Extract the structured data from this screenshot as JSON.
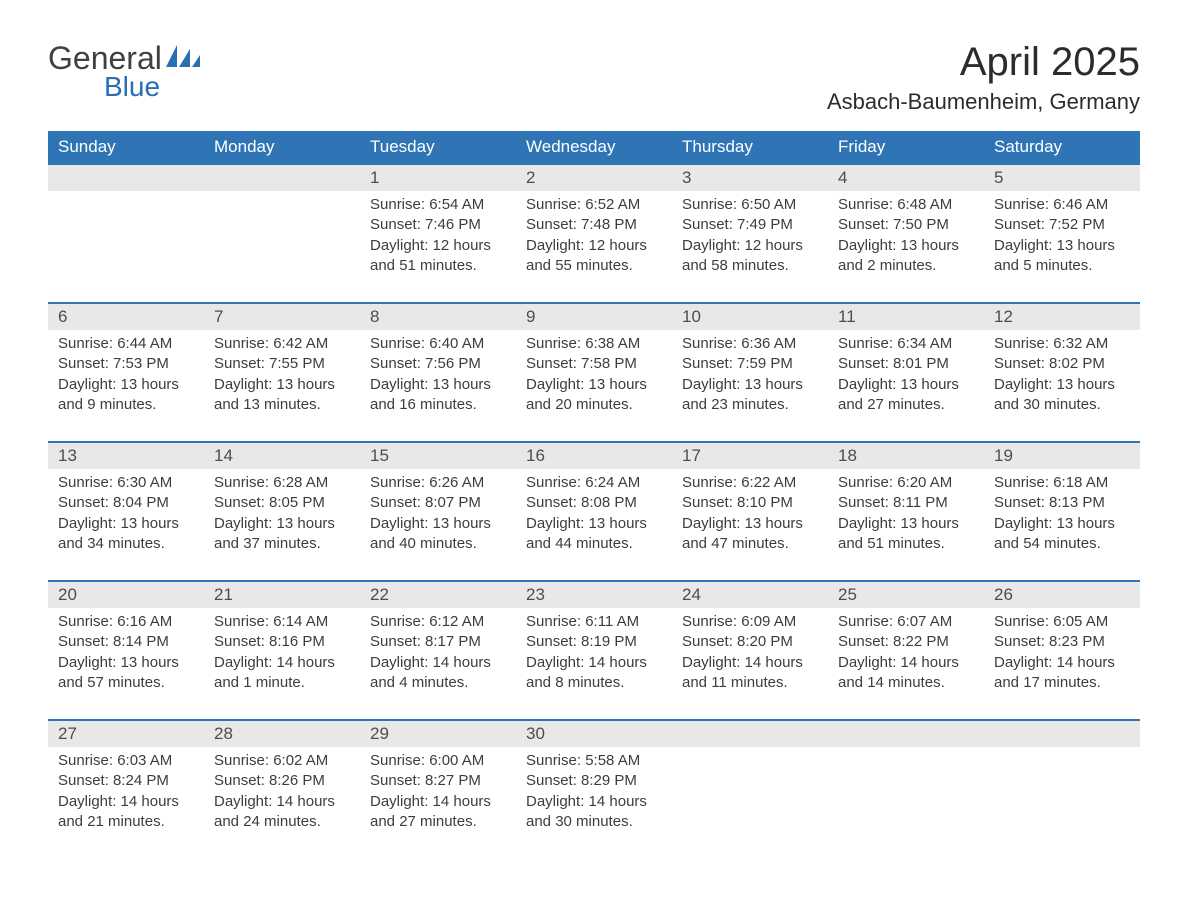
{
  "brand": {
    "general": "General",
    "blue": "Blue"
  },
  "title": "April 2025",
  "location": "Asbach-Baumenheim, Germany",
  "colors": {
    "header_bg": "#2f75b5",
    "header_text": "#ffffff",
    "daynum_bg": "#e8e8e8",
    "daynum_text": "#4d4d4d",
    "body_text": "#3d3d3d",
    "row_divider": "#2f75b5",
    "logo_general": "#404040",
    "logo_blue": "#2b6fb3",
    "background": "#ffffff"
  },
  "typography": {
    "title_fontsize": 40,
    "location_fontsize": 22,
    "header_fontsize": 17,
    "daynum_fontsize": 17,
    "body_fontsize": 15
  },
  "daysOfWeek": [
    "Sunday",
    "Monday",
    "Tuesday",
    "Wednesday",
    "Thursday",
    "Friday",
    "Saturday"
  ],
  "weeks": [
    [
      {
        "day": "",
        "sunrise": "",
        "sunset": "",
        "daylight": ""
      },
      {
        "day": "",
        "sunrise": "",
        "sunset": "",
        "daylight": ""
      },
      {
        "day": "1",
        "sunrise": "Sunrise: 6:54 AM",
        "sunset": "Sunset: 7:46 PM",
        "daylight": "Daylight: 12 hours and 51 minutes."
      },
      {
        "day": "2",
        "sunrise": "Sunrise: 6:52 AM",
        "sunset": "Sunset: 7:48 PM",
        "daylight": "Daylight: 12 hours and 55 minutes."
      },
      {
        "day": "3",
        "sunrise": "Sunrise: 6:50 AM",
        "sunset": "Sunset: 7:49 PM",
        "daylight": "Daylight: 12 hours and 58 minutes."
      },
      {
        "day": "4",
        "sunrise": "Sunrise: 6:48 AM",
        "sunset": "Sunset: 7:50 PM",
        "daylight": "Daylight: 13 hours and 2 minutes."
      },
      {
        "day": "5",
        "sunrise": "Sunrise: 6:46 AM",
        "sunset": "Sunset: 7:52 PM",
        "daylight": "Daylight: 13 hours and 5 minutes."
      }
    ],
    [
      {
        "day": "6",
        "sunrise": "Sunrise: 6:44 AM",
        "sunset": "Sunset: 7:53 PM",
        "daylight": "Daylight: 13 hours and 9 minutes."
      },
      {
        "day": "7",
        "sunrise": "Sunrise: 6:42 AM",
        "sunset": "Sunset: 7:55 PM",
        "daylight": "Daylight: 13 hours and 13 minutes."
      },
      {
        "day": "8",
        "sunrise": "Sunrise: 6:40 AM",
        "sunset": "Sunset: 7:56 PM",
        "daylight": "Daylight: 13 hours and 16 minutes."
      },
      {
        "day": "9",
        "sunrise": "Sunrise: 6:38 AM",
        "sunset": "Sunset: 7:58 PM",
        "daylight": "Daylight: 13 hours and 20 minutes."
      },
      {
        "day": "10",
        "sunrise": "Sunrise: 6:36 AM",
        "sunset": "Sunset: 7:59 PM",
        "daylight": "Daylight: 13 hours and 23 minutes."
      },
      {
        "day": "11",
        "sunrise": "Sunrise: 6:34 AM",
        "sunset": "Sunset: 8:01 PM",
        "daylight": "Daylight: 13 hours and 27 minutes."
      },
      {
        "day": "12",
        "sunrise": "Sunrise: 6:32 AM",
        "sunset": "Sunset: 8:02 PM",
        "daylight": "Daylight: 13 hours and 30 minutes."
      }
    ],
    [
      {
        "day": "13",
        "sunrise": "Sunrise: 6:30 AM",
        "sunset": "Sunset: 8:04 PM",
        "daylight": "Daylight: 13 hours and 34 minutes."
      },
      {
        "day": "14",
        "sunrise": "Sunrise: 6:28 AM",
        "sunset": "Sunset: 8:05 PM",
        "daylight": "Daylight: 13 hours and 37 minutes."
      },
      {
        "day": "15",
        "sunrise": "Sunrise: 6:26 AM",
        "sunset": "Sunset: 8:07 PM",
        "daylight": "Daylight: 13 hours and 40 minutes."
      },
      {
        "day": "16",
        "sunrise": "Sunrise: 6:24 AM",
        "sunset": "Sunset: 8:08 PM",
        "daylight": "Daylight: 13 hours and 44 minutes."
      },
      {
        "day": "17",
        "sunrise": "Sunrise: 6:22 AM",
        "sunset": "Sunset: 8:10 PM",
        "daylight": "Daylight: 13 hours and 47 minutes."
      },
      {
        "day": "18",
        "sunrise": "Sunrise: 6:20 AM",
        "sunset": "Sunset: 8:11 PM",
        "daylight": "Daylight: 13 hours and 51 minutes."
      },
      {
        "day": "19",
        "sunrise": "Sunrise: 6:18 AM",
        "sunset": "Sunset: 8:13 PM",
        "daylight": "Daylight: 13 hours and 54 minutes."
      }
    ],
    [
      {
        "day": "20",
        "sunrise": "Sunrise: 6:16 AM",
        "sunset": "Sunset: 8:14 PM",
        "daylight": "Daylight: 13 hours and 57 minutes."
      },
      {
        "day": "21",
        "sunrise": "Sunrise: 6:14 AM",
        "sunset": "Sunset: 8:16 PM",
        "daylight": "Daylight: 14 hours and 1 minute."
      },
      {
        "day": "22",
        "sunrise": "Sunrise: 6:12 AM",
        "sunset": "Sunset: 8:17 PM",
        "daylight": "Daylight: 14 hours and 4 minutes."
      },
      {
        "day": "23",
        "sunrise": "Sunrise: 6:11 AM",
        "sunset": "Sunset: 8:19 PM",
        "daylight": "Daylight: 14 hours and 8 minutes."
      },
      {
        "day": "24",
        "sunrise": "Sunrise: 6:09 AM",
        "sunset": "Sunset: 8:20 PM",
        "daylight": "Daylight: 14 hours and 11 minutes."
      },
      {
        "day": "25",
        "sunrise": "Sunrise: 6:07 AM",
        "sunset": "Sunset: 8:22 PM",
        "daylight": "Daylight: 14 hours and 14 minutes."
      },
      {
        "day": "26",
        "sunrise": "Sunrise: 6:05 AM",
        "sunset": "Sunset: 8:23 PM",
        "daylight": "Daylight: 14 hours and 17 minutes."
      }
    ],
    [
      {
        "day": "27",
        "sunrise": "Sunrise: 6:03 AM",
        "sunset": "Sunset: 8:24 PM",
        "daylight": "Daylight: 14 hours and 21 minutes."
      },
      {
        "day": "28",
        "sunrise": "Sunrise: 6:02 AM",
        "sunset": "Sunset: 8:26 PM",
        "daylight": "Daylight: 14 hours and 24 minutes."
      },
      {
        "day": "29",
        "sunrise": "Sunrise: 6:00 AM",
        "sunset": "Sunset: 8:27 PM",
        "daylight": "Daylight: 14 hours and 27 minutes."
      },
      {
        "day": "30",
        "sunrise": "Sunrise: 5:58 AM",
        "sunset": "Sunset: 8:29 PM",
        "daylight": "Daylight: 14 hours and 30 minutes."
      },
      {
        "day": "",
        "sunrise": "",
        "sunset": "",
        "daylight": ""
      },
      {
        "day": "",
        "sunrise": "",
        "sunset": "",
        "daylight": ""
      },
      {
        "day": "",
        "sunrise": "",
        "sunset": "",
        "daylight": ""
      }
    ]
  ]
}
